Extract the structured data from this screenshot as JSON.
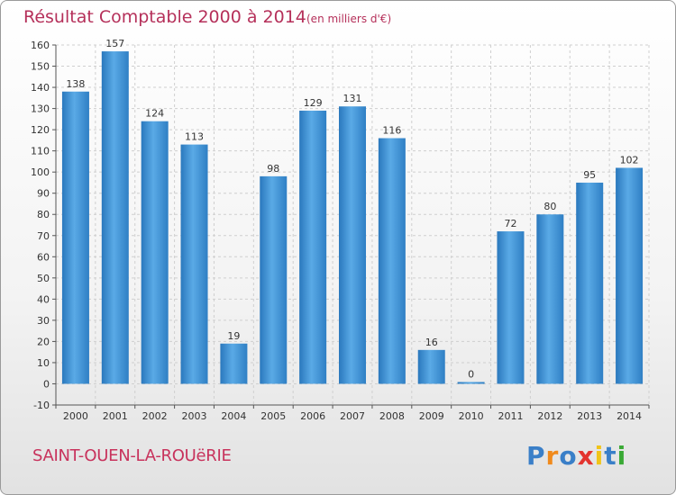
{
  "chart_data": {
    "type": "bar",
    "title": "Résultat Comptable 2000 à 2014",
    "subtitle": "(en milliers d'€)",
    "categories": [
      "2000",
      "2001",
      "2002",
      "2003",
      "2004",
      "2005",
      "2006",
      "2007",
      "2008",
      "2009",
      "2010",
      "2011",
      "2012",
      "2013",
      "2014"
    ],
    "values": [
      138,
      157,
      124,
      113,
      19,
      98,
      129,
      131,
      116,
      16,
      0,
      72,
      80,
      95,
      102
    ],
    "ylim": [
      -10,
      160
    ],
    "yticks": [
      -10,
      0,
      10,
      20,
      30,
      40,
      50,
      60,
      70,
      80,
      90,
      100,
      110,
      120,
      130,
      140,
      150,
      160
    ],
    "xlabel": "",
    "ylabel": "",
    "grid": true,
    "bar_color": "#3d8fd0"
  },
  "footer": {
    "city": "SAINT-OUEN-LA-ROUëRIE",
    "logo_letters": [
      "P",
      "r",
      "o",
      "x",
      "i",
      "t",
      "i"
    ],
    "logo_colors": [
      "#3a7fc8",
      "#f08a1c",
      "#3a7fc8",
      "#e3342f",
      "#f0c419",
      "#3a7fc8",
      "#3aa935"
    ]
  }
}
